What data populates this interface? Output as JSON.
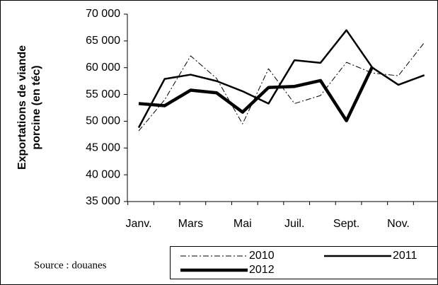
{
  "chart_data": {
    "type": "line",
    "ylabel": [
      "Exportations de viande",
      "porcine (en téc)"
    ],
    "source": "Source : douanes",
    "categories": [
      "Janv.",
      null,
      "Mars",
      null,
      "Mai",
      null,
      "Juil.",
      null,
      "Sept.",
      null,
      "Nov.",
      null
    ],
    "series": [
      {
        "name": "2010",
        "color": "#000000",
        "width": 1,
        "dash": "8,3,2,3",
        "values": [
          48200,
          54000,
          62200,
          58000,
          49500,
          59800,
          53300,
          54800,
          61000,
          59000,
          58500,
          64700
        ]
      },
      {
        "name": "2011",
        "color": "#000000",
        "width": 2.5,
        "dash": "none",
        "values": [
          48800,
          57900,
          58700,
          57500,
          55600,
          53300,
          61400,
          60900,
          67000,
          60000,
          56800,
          58600
        ]
      },
      {
        "name": "2012",
        "color": "#000000",
        "width": 4.5,
        "dash": "none",
        "values": [
          53300,
          52900,
          55800,
          55300,
          51700,
          56300,
          56500,
          57600,
          50100,
          60200,
          null,
          null
        ]
      }
    ],
    "ylim": [
      35000,
      70000
    ],
    "yticks": [
      {
        "value": 35000,
        "label": "35 000"
      },
      {
        "value": 40000,
        "label": "40 000"
      },
      {
        "value": 45000,
        "label": "45 000"
      },
      {
        "value": 50000,
        "label": "50 000"
      },
      {
        "value": 55000,
        "label": "55 000"
      },
      {
        "value": 60000,
        "label": "60 000"
      },
      {
        "value": 65000,
        "label": "65 000"
      },
      {
        "value": 70000,
        "label": "70 000"
      }
    ]
  }
}
